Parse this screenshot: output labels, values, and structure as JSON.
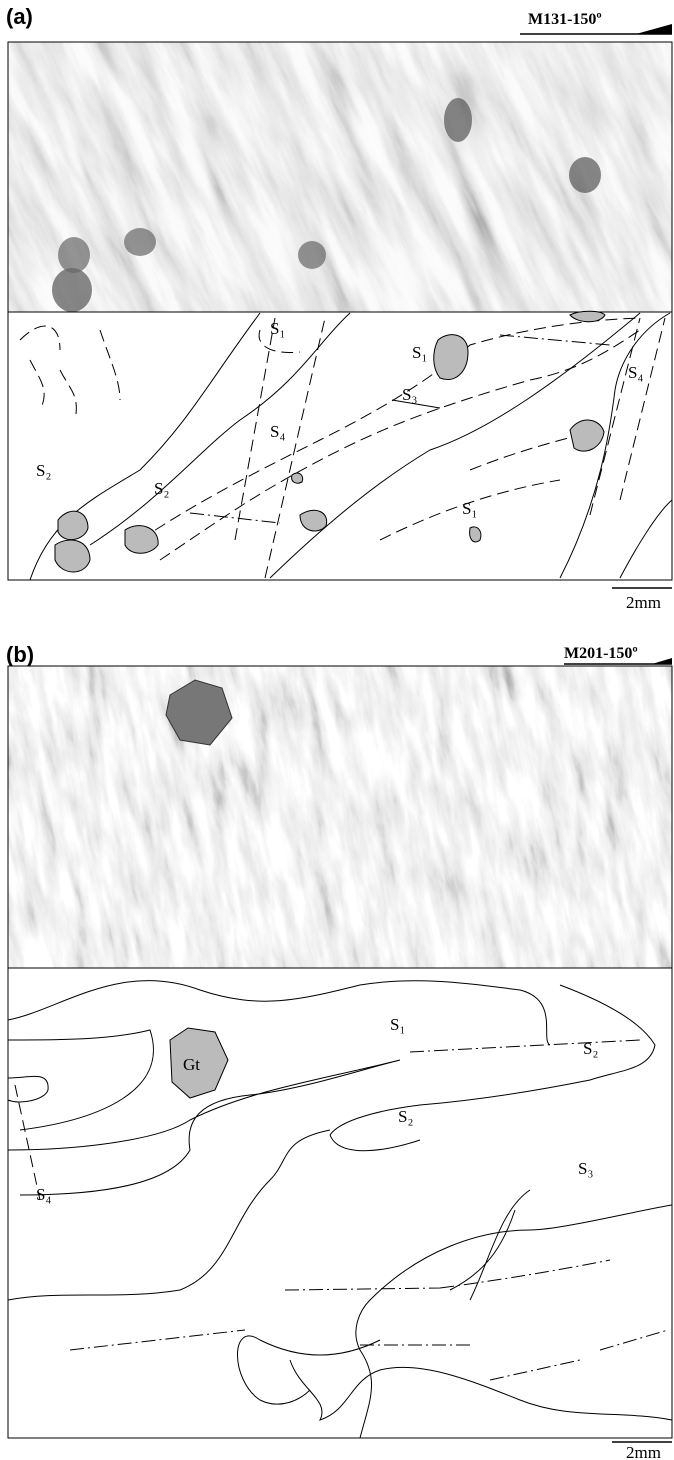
{
  "panels": [
    {
      "label": "(a)",
      "sample": "M131-150º",
      "scale_bar": "2mm",
      "annotations": [
        "S₁",
        "S₁",
        "S₄",
        "S₃",
        "S₄",
        "S₂",
        "S₂",
        "S₁"
      ]
    },
    {
      "label": "(b)",
      "sample": "M201-150º",
      "scale_bar": "2mm",
      "annotations": [
        "S₁",
        "Gt",
        "S₂",
        "S₂",
        "S₄",
        "S₃"
      ]
    }
  ]
}
